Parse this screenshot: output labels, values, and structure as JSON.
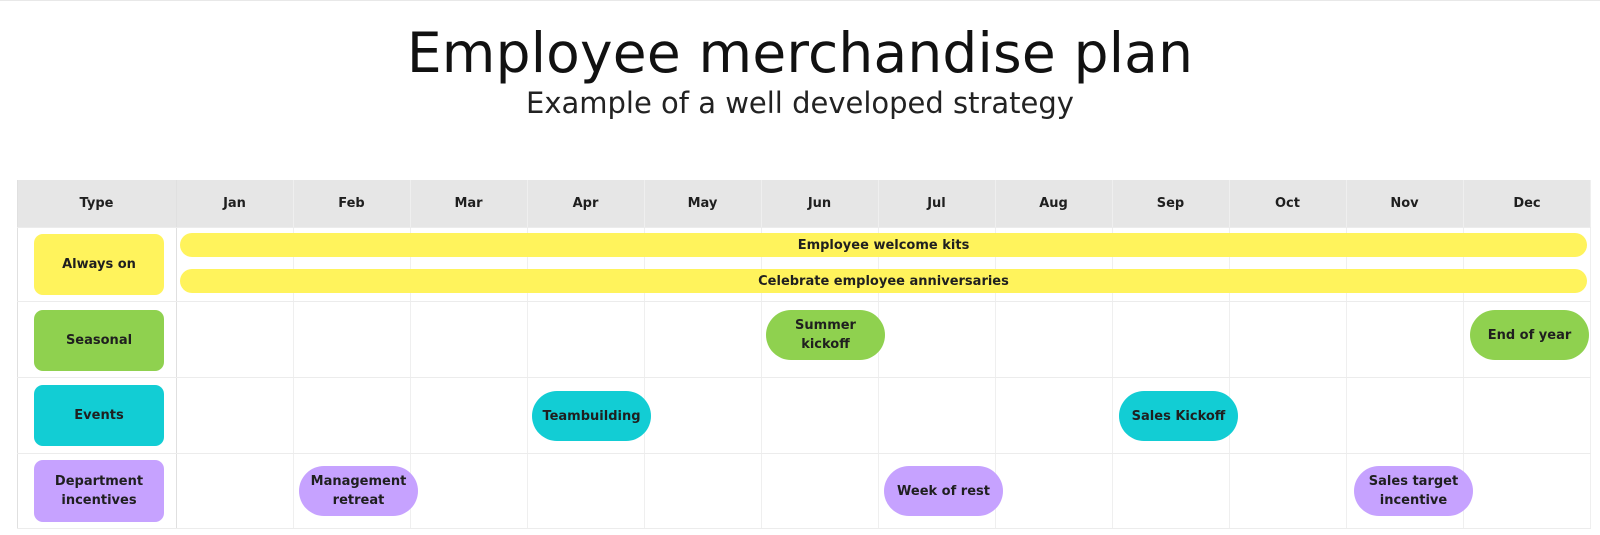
{
  "title": "Employee merchandise plan",
  "subtitle": "Example of a well developed strategy",
  "header": {
    "type": "Type",
    "months": [
      "Jan",
      "Feb",
      "Mar",
      "Apr",
      "May",
      "Jun",
      "Jul",
      "Aug",
      "Sep",
      "Oct",
      "Nov",
      "Dec"
    ]
  },
  "colors": {
    "always_on": "#fff35c",
    "seasonal": "#8fd14f",
    "events": "#12cdd4",
    "department": "#c6a2ff",
    "header_bg": "#e6e6e6"
  },
  "rows": {
    "always_on": {
      "label": "Always on",
      "items": [
        {
          "label": "Employee welcome kits",
          "start_month": "Jan",
          "end_month": "Dec"
        },
        {
          "label": "Celebrate employee anniversaries",
          "start_month": "Jan",
          "end_month": "Dec"
        }
      ]
    },
    "seasonal": {
      "label": "Seasonal",
      "items": [
        {
          "label": "Summer kickoff",
          "month": "Jun"
        },
        {
          "label": "End of year",
          "month": "Dec"
        }
      ]
    },
    "events": {
      "label": "Events",
      "items": [
        {
          "label": "Teambuilding",
          "month": "Apr"
        },
        {
          "label": "Sales Kickoff",
          "month": "Sep"
        }
      ]
    },
    "department": {
      "label": "Department incentives",
      "items": [
        {
          "label": "Management retreat",
          "month": "Feb"
        },
        {
          "label": "Week of rest",
          "month": "Jul"
        },
        {
          "label": "Sales target incentive",
          "month": "Nov"
        }
      ]
    }
  }
}
